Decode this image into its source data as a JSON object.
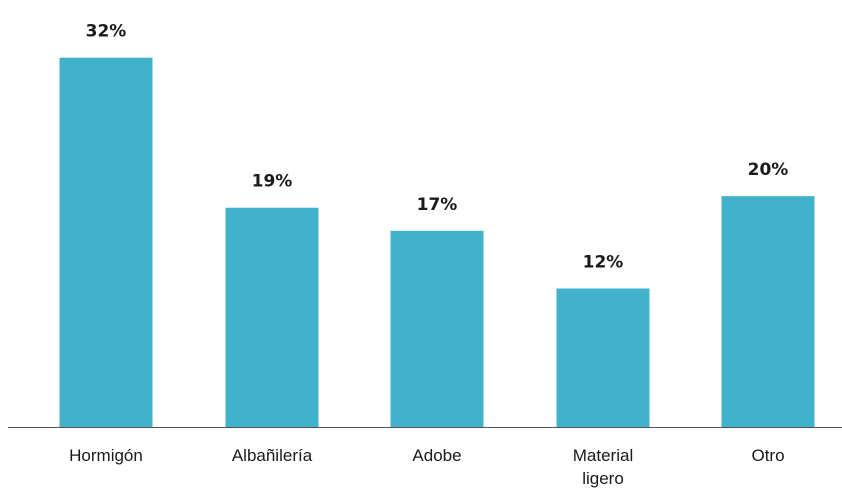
{
  "chart_data": {
    "type": "bar",
    "categories": [
      [
        "Hormigón"
      ],
      [
        "Albañilería"
      ],
      [
        "Adobe"
      ],
      [
        "Material",
        "ligero"
      ],
      [
        "Otro"
      ]
    ],
    "values": [
      32,
      19,
      17,
      12,
      20
    ],
    "value_labels": [
      "32%",
      "19%",
      "17%",
      "12%",
      "20%"
    ],
    "ylim": [
      0,
      37
    ],
    "bar_color": "#42b1ca",
    "axis_color": "#555555",
    "grid": false,
    "legend": "none"
  }
}
